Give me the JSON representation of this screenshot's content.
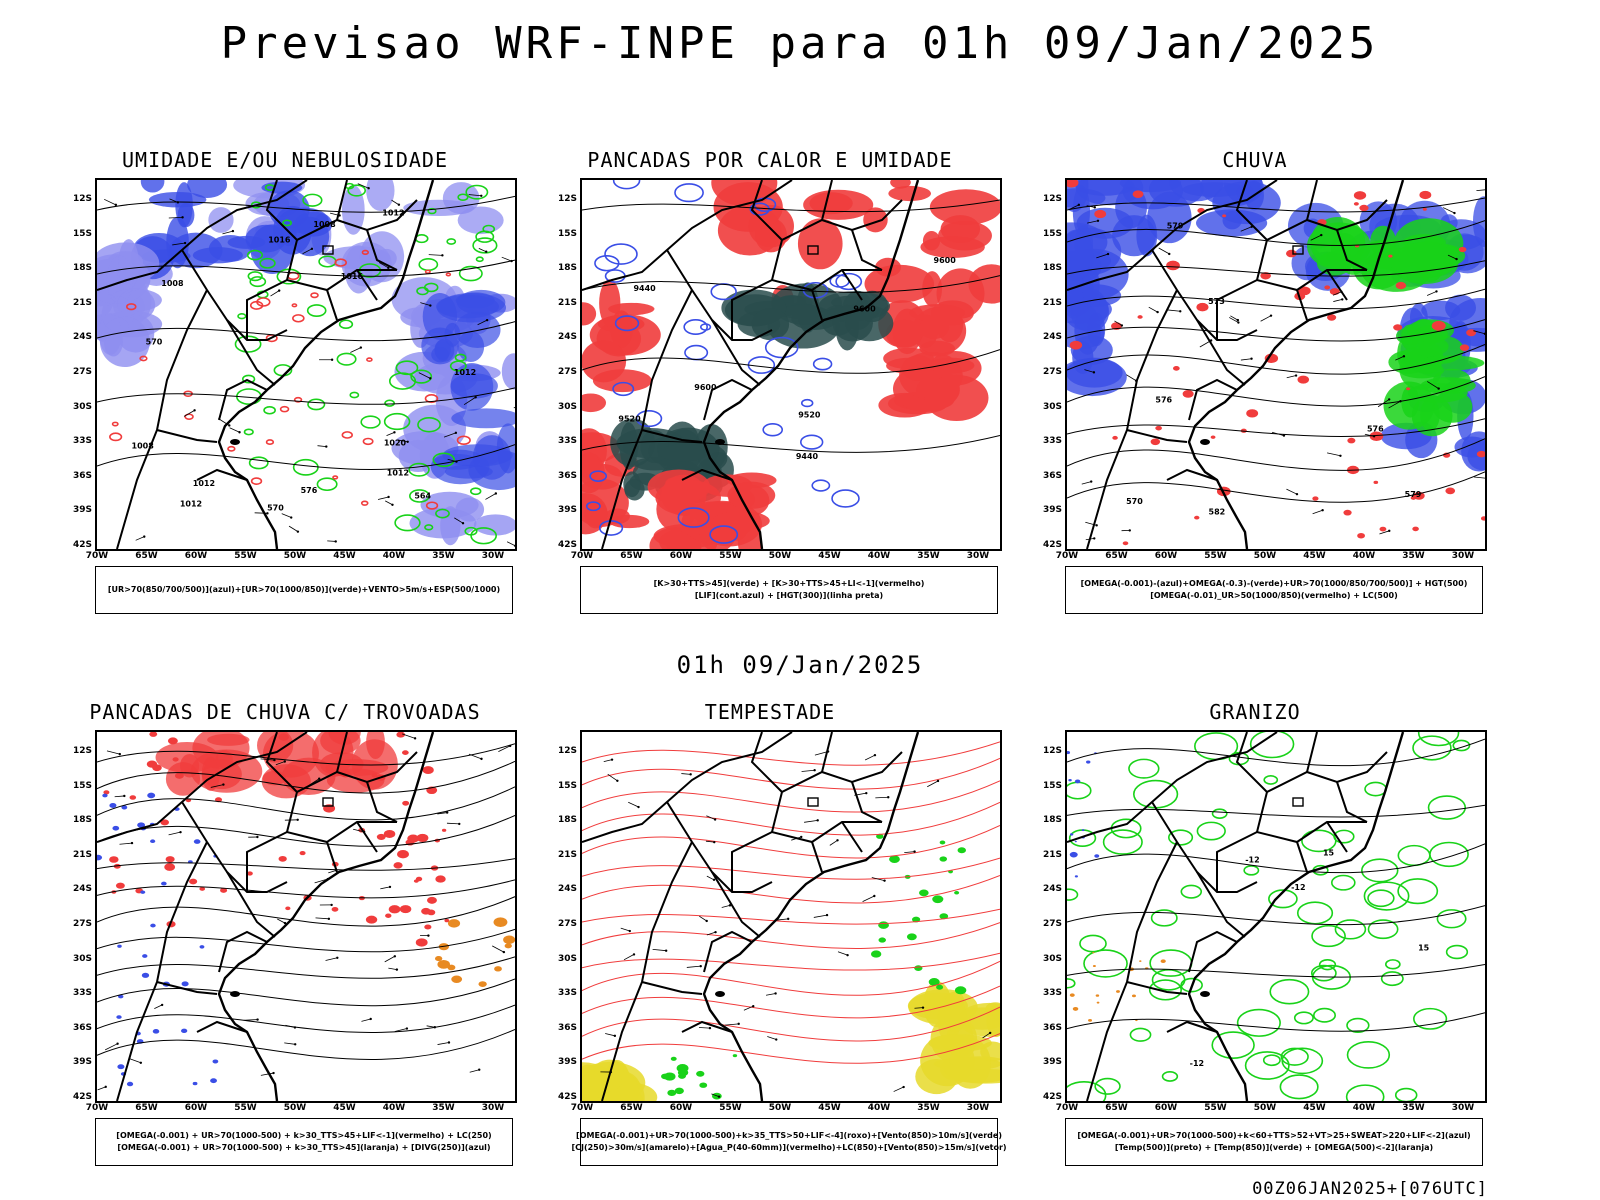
{
  "header": {
    "title": "Previsao WRF-INPE  para 01h 09/Jan/2025"
  },
  "subheader": {
    "time": "01h 09/Jan/2025"
  },
  "footer": {
    "run": "00Z06JAN2025+[076UTC]"
  },
  "axes": {
    "lat": [
      "12S",
      "15S",
      "18S",
      "21S",
      "24S",
      "27S",
      "30S",
      "33S",
      "36S",
      "39S",
      "42S"
    ],
    "lon": [
      "70W",
      "65W",
      "60W",
      "55W",
      "50W",
      "45W",
      "40W",
      "35W",
      "30W"
    ]
  },
  "colors": {
    "blue": "#3a4ee6",
    "lightblue": "#8f8ff0",
    "green": "#19d219",
    "red": "#f03c3c",
    "darkteal": "#294c4c",
    "orange": "#e88a22",
    "yellow": "#e6d92a",
    "black": "#000000"
  },
  "panels": [
    {
      "id": "umidade",
      "title": "UMIDADE E/OU NEBULOSIDADE",
      "legend": [
        "[UR>70(850/700/500)](azul)+[UR>70(1000/850)](verde)+VENTO>5m/s+ESP(500/1000)"
      ],
      "contour_labels": [
        "1012",
        "1012",
        "1012",
        "1016",
        "1008",
        "1008",
        "1012",
        "1008",
        "1012",
        "1016",
        "1020",
        "576",
        "570",
        "564",
        "570"
      ]
    },
    {
      "id": "pancadas-calor",
      "title": "PANCADAS POR CALOR E UMIDADE",
      "legend": [
        "[K>30+TTS>45](verde)  +  [K>30+TTS>45+LI<-1](vermelho)",
        "[LIF](cont.azul)  +  [HGT(300)](linha preta)"
      ],
      "contour_labels": [
        "9600",
        "9600",
        "9600",
        "9520",
        "9520",
        "9440",
        "9440"
      ]
    },
    {
      "id": "chuva",
      "title": "CHUVA",
      "legend": [
        "[OMEGA(-0.001)-(azul)+OMEGA(-0.3)-(verde)+UR>70(1000/850/700/500)]  +  HGT(500)",
        "[OMEGA(-0.01)_UR>50(1000/850)(vermelho)  +  LC(500)"
      ],
      "contour_labels": [
        "582",
        "579",
        "576",
        "573",
        "570",
        "576",
        "579"
      ]
    },
    {
      "id": "pancadas-trovoadas",
      "title": "PANCADAS DE CHUVA C/ TROVOADAS",
      "legend": [
        "[OMEGA(-0.001)  +  UR>70(1000-500)  +  k>30_TTS>45+LIF<-1](vermelho)  +  LC(250)",
        "[OMEGA(-0.001)  +  UR>70(1000-500)  +  k>30_TTS>45](laranja)  +  [DIVG(250)](azul)"
      ],
      "contour_labels": []
    },
    {
      "id": "tempestade",
      "title": "TEMPESTADE",
      "legend": [
        "[OMEGA(-0.001)+UR>70(1000-500)+k>35_TTS>50+LIF<-4](roxo)+[Vento(850)>10m/s](verde)",
        "[CJ(250)>30m/s](amarelo)+[Agua_P(40-60mm)](vermelho)+LC(850)+[Vento(850)>15m/s](vetor)"
      ],
      "contour_labels": []
    },
    {
      "id": "granizo",
      "title": "GRANIZO",
      "legend": [
        "[OMEGA(-0.001)+UR>70(1000-500)+k<60+TTS>52+VT>25+SWEAT>220+LIF<-2](azul)",
        "[Temp(500)](preto)  +  [Temp(850)](verde)  +  [OMEGA(500)<-2](laranja)"
      ],
      "contour_labels": [
        "-12",
        "-12",
        "-12",
        "15",
        "15"
      ]
    }
  ]
}
